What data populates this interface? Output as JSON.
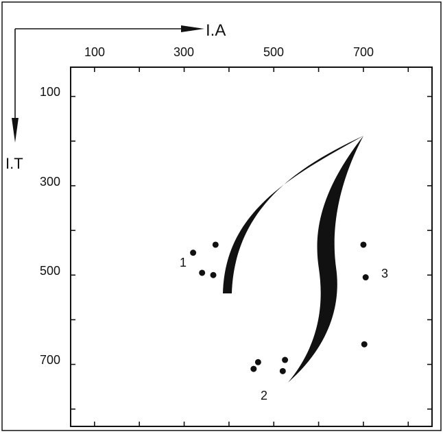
{
  "axes": {
    "x_label": "I.A",
    "y_label": "I.T",
    "x_ticks": [
      "100",
      "300",
      "500",
      "700"
    ],
    "y_ticks": [
      "100",
      "300",
      "500",
      "700"
    ]
  },
  "groups": [
    {
      "label": "1",
      "points": [
        [
          320,
          450
        ],
        [
          340,
          495
        ],
        [
          365,
          500
        ],
        [
          370,
          432
        ]
      ]
    },
    {
      "label": "2",
      "points": [
        [
          455,
          710
        ],
        [
          465,
          695
        ],
        [
          520,
          715
        ],
        [
          525,
          690
        ]
      ]
    },
    {
      "label": "3",
      "points": [
        [
          700,
          432
        ],
        [
          705,
          505
        ],
        [
          702,
          655
        ]
      ]
    }
  ],
  "colors": {
    "ink": "#111111",
    "background": "#ffffff"
  }
}
